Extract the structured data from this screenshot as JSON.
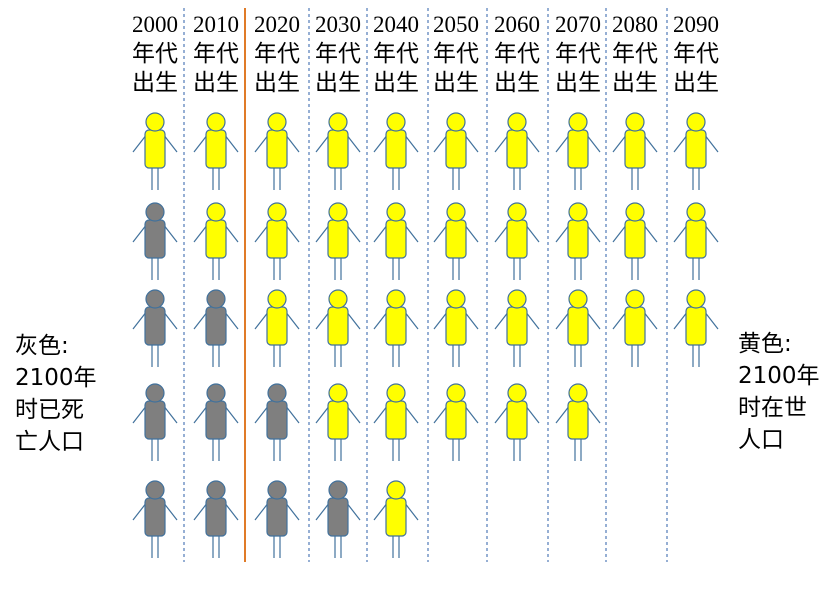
{
  "columns": [
    {
      "label": [
        "2000",
        "年代",
        "出生"
      ],
      "alive": 1,
      "total": 5
    },
    {
      "label": [
        "2010",
        "年代",
        "出生"
      ],
      "alive": 2,
      "total": 5
    },
    {
      "label": [
        "2020",
        "年代",
        "出生"
      ],
      "alive": 3,
      "total": 5
    },
    {
      "label": [
        "2030",
        "年代",
        "出生"
      ],
      "alive": 4,
      "total": 5
    },
    {
      "label": [
        "2040",
        "年代",
        "出生"
      ],
      "alive": 5,
      "total": 5
    },
    {
      "label": [
        "2050",
        "年代",
        "出生"
      ],
      "alive": 4,
      "total": 4
    },
    {
      "label": [
        "2060",
        "年代",
        "出生"
      ],
      "alive": 4,
      "total": 4
    },
    {
      "label": [
        "2070",
        "年代",
        "出生"
      ],
      "alive": 4,
      "total": 4
    },
    {
      "label": [
        "2080",
        "年代",
        "出生"
      ],
      "alive": 3,
      "total": 3
    },
    {
      "label": [
        "2090",
        "年代",
        "出生"
      ],
      "alive": 3,
      "total": 3
    }
  ],
  "left_legend": [
    "灰色:",
    "2100年",
    "时已死",
    "亡人口"
  ],
  "right_legend": [
    "黄色:",
    "2100年",
    "时在世",
    "人口"
  ],
  "colors": {
    "alive_fill": "#ffff00",
    "dead_fill": "#7f7f7f",
    "outline": "#41719c",
    "divider_dashed": "#2e5fa8",
    "divider_current": "#e07b28"
  },
  "current_divider_after_column": 2
}
